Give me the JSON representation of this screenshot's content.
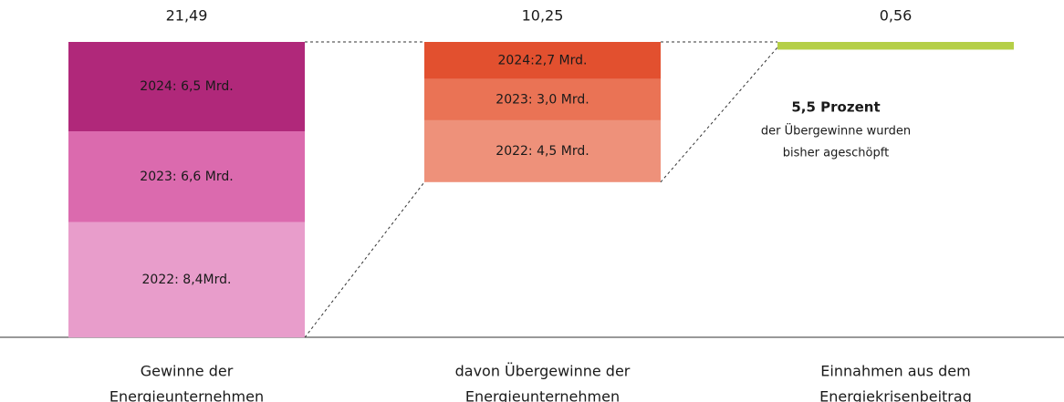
{
  "chart_data": {
    "type": "hanging-stacked-bar",
    "categories": [
      [
        "Gewinne der",
        "Energieunternehmen"
      ],
      [
        "davon Übergewinne der",
        "Energieunternehmen"
      ],
      [
        "Einnahmen aus dem",
        "Energiekrisenbeitrag"
      ]
    ],
    "totals": [
      21.49,
      10.25,
      0.56
    ],
    "total_labels": [
      "21,49",
      "10,25",
      "0,56"
    ],
    "segments": [
      [
        {
          "value": 8.4,
          "label": "2022: 8,4Mrd.",
          "color": "#e89dcb"
        },
        {
          "value": 6.6,
          "label": "2023: 6,6 Mrd.",
          "color": "#db6aae"
        },
        {
          "value": 6.5,
          "label": "2024: 6,5 Mrd.",
          "color": "#b0287a"
        }
      ],
      [
        {
          "value": 4.5,
          "label": "2022: 4,5 Mrd.",
          "color": "#ee917a"
        },
        {
          "value": 3.0,
          "label": "2023: 3,0 Mrd.",
          "color": "#ea7355"
        },
        {
          "value": 2.7,
          "label": "2024:2,7 Mrd.",
          "color": "#e2502f"
        }
      ],
      [
        {
          "value": 0.56,
          "color": "#b5cf47"
        }
      ]
    ],
    "annotation": {
      "title": "5,5 Prozent",
      "lines": [
        "der Übergewinne wurden",
        "bisher ageschöpft"
      ]
    }
  }
}
